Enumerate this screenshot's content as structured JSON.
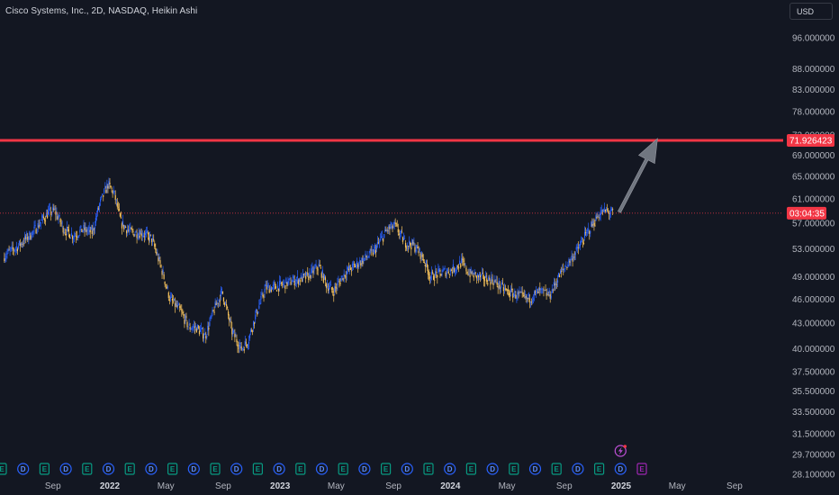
{
  "title": "Cisco Systems, Inc., 2D, NASDAQ, Heikin Ashi",
  "currency": "USD",
  "colors": {
    "background": "#131722",
    "grid": "#1e222d",
    "axis_text": "#b2b5be",
    "up": "#2962ff",
    "down": "#f7c35c",
    "resistance": "#f23645",
    "price_line": "#f23645",
    "arrow": "#707680",
    "dividend_badge": "#2962ff",
    "earnings_badge": "#089981",
    "future_earnings_badge": "#9c27b0"
  },
  "price_labels": {
    "resistance": "71.926423",
    "countdown": "03:04:35"
  },
  "event_badges": [
    "E",
    "D",
    "E",
    "D",
    "E",
    "D",
    "E",
    "D",
    "E",
    "D",
    "E",
    "D",
    "E",
    "D",
    "E",
    "D",
    "E",
    "D",
    "E",
    "D",
    "E",
    "D",
    "E",
    "D",
    "E",
    "D",
    "E",
    "D",
    "E",
    "D",
    "E"
  ],
  "chart_data": {
    "type": "candlestick",
    "style": "Heikin Ashi",
    "symbol": "Cisco Systems, Inc.",
    "exchange": "NASDAQ",
    "interval": "2D",
    "y_scale": "log",
    "ylim": [
      28.1,
      103
    ],
    "y_ticks": [
      "96.000000",
      "88.000000",
      "83.000000",
      "78.000000",
      "73.000000",
      "69.000000",
      "65.000000",
      "61.000000",
      "57.000000",
      "53.000000",
      "49.000000",
      "46.000000",
      "43.000000",
      "40.000000",
      "37.500000",
      "35.500000",
      "33.500000",
      "31.500000",
      "29.700000",
      "28.100000"
    ],
    "x_ticks": [
      {
        "label": "Sep",
        "date": "2021-09-01",
        "bold": false
      },
      {
        "label": "2022",
        "date": "2022-01-01",
        "bold": true
      },
      {
        "label": "May",
        "date": "2022-05-01",
        "bold": false
      },
      {
        "label": "Sep",
        "date": "2022-09-01",
        "bold": false
      },
      {
        "label": "2023",
        "date": "2023-01-01",
        "bold": true
      },
      {
        "label": "May",
        "date": "2023-05-01",
        "bold": false
      },
      {
        "label": "Sep",
        "date": "2023-09-01",
        "bold": false
      },
      {
        "label": "2024",
        "date": "2024-01-01",
        "bold": true
      },
      {
        "label": "May",
        "date": "2024-05-01",
        "bold": false
      },
      {
        "label": "Sep",
        "date": "2024-09-01",
        "bold": false
      },
      {
        "label": "2025",
        "date": "2025-01-01",
        "bold": true
      },
      {
        "label": "May",
        "date": "2025-05-01",
        "bold": false
      },
      {
        "label": "Sep",
        "date": "2025-09-01",
        "bold": false
      }
    ],
    "price_path": [
      [
        "2021-05-20",
        52.0
      ],
      [
        "2021-06-20",
        53.5
      ],
      [
        "2021-07-20",
        55.5
      ],
      [
        "2021-08-20",
        58.5
      ],
      [
        "2021-09-05",
        59.0
      ],
      [
        "2021-09-25",
        56.0
      ],
      [
        "2021-10-15",
        55.0
      ],
      [
        "2021-11-05",
        56.0
      ],
      [
        "2021-11-25",
        55.5
      ],
      [
        "2021-12-10",
        60.0
      ],
      [
        "2021-12-28",
        63.5
      ],
      [
        "2022-01-10",
        62.0
      ],
      [
        "2022-01-25",
        57.0
      ],
      [
        "2022-02-15",
        55.5
      ],
      [
        "2022-03-10",
        55.5
      ],
      [
        "2022-04-01",
        54.5
      ],
      [
        "2022-04-20",
        50.5
      ],
      [
        "2022-05-10",
        46.0
      ],
      [
        "2022-06-01",
        44.5
      ],
      [
        "2022-06-20",
        42.5
      ],
      [
        "2022-07-05",
        42.5
      ],
      [
        "2022-07-25",
        41.5
      ],
      [
        "2022-08-15",
        45.0
      ],
      [
        "2022-08-30",
        47.0
      ],
      [
        "2022-09-20",
        42.0
      ],
      [
        "2022-10-10",
        40.0
      ],
      [
        "2022-10-25",
        41.0
      ],
      [
        "2022-11-10",
        44.0
      ],
      [
        "2022-12-01",
        47.5
      ],
      [
        "2022-12-20",
        47.5
      ],
      [
        "2023-01-10",
        48.0
      ],
      [
        "2023-02-01",
        48.5
      ],
      [
        "2023-03-01",
        49.0
      ],
      [
        "2023-03-25",
        50.5
      ],
      [
        "2023-04-10",
        48.0
      ],
      [
        "2023-04-25",
        47.0
      ],
      [
        "2023-05-20",
        49.5
      ],
      [
        "2023-06-20",
        51.0
      ],
      [
        "2023-07-20",
        52.5
      ],
      [
        "2023-08-20",
        56.0
      ],
      [
        "2023-09-05",
        56.5
      ],
      [
        "2023-09-25",
        54.0
      ],
      [
        "2023-10-15",
        53.5
      ],
      [
        "2023-11-01",
        52.0
      ],
      [
        "2023-11-20",
        49.0
      ],
      [
        "2023-12-10",
        49.5
      ],
      [
        "2024-01-05",
        50.0
      ],
      [
        "2024-01-25",
        51.0
      ],
      [
        "2024-02-10",
        49.5
      ],
      [
        "2024-03-01",
        49.0
      ],
      [
        "2024-04-01",
        48.5
      ],
      [
        "2024-05-01",
        47.0
      ],
      [
        "2024-05-25",
        46.5
      ],
      [
        "2024-06-15",
        46.0
      ],
      [
        "2024-07-10",
        47.0
      ],
      [
        "2024-08-01",
        46.5
      ],
      [
        "2024-08-20",
        49.0
      ],
      [
        "2024-09-10",
        51.0
      ],
      [
        "2024-10-01",
        53.0
      ],
      [
        "2024-10-25",
        56.0
      ],
      [
        "2024-11-15",
        58.5
      ],
      [
        "2024-12-01",
        59.0
      ],
      [
        "2024-12-15",
        58.5
      ]
    ],
    "horizontal_lines": [
      {
        "price": 71.926423,
        "style": "solid",
        "label": "71.926423"
      },
      {
        "price": 58.6,
        "style": "dotted",
        "label": "03:04:35"
      }
    ],
    "arrow": {
      "from": [
        "2024-12-28",
        58.8
      ],
      "to": [
        "2025-03-20",
        72.3
      ],
      "direction": "up-right"
    },
    "last_date": "2024-12-15",
    "grid": false,
    "legend": "none"
  }
}
